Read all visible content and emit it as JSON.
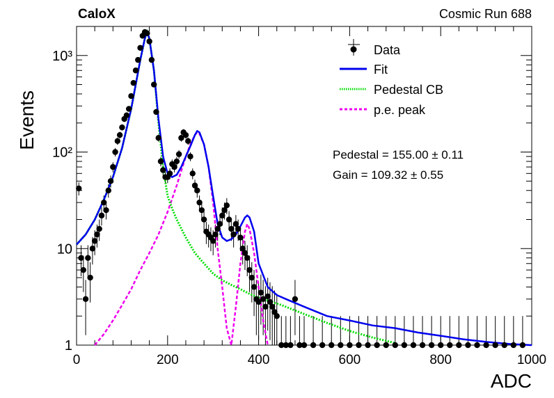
{
  "header": {
    "experiment": "CaloX",
    "run": "Cosmic Run 688"
  },
  "legend": {
    "items": [
      {
        "key": "data",
        "label": "Data"
      },
      {
        "key": "fit",
        "label": "Fit"
      },
      {
        "key": "pedestal",
        "label": "Pedestal CB"
      },
      {
        "key": "pe",
        "label": "p.e. peak"
      }
    ]
  },
  "fit_results": {
    "pedestal": "Pedestal = 155.00 ± 0.11",
    "gain": "Gain = 109.32 ± 0.55"
  },
  "colors": {
    "data": "#000000",
    "fit": "#0000ee",
    "pedestal": "#00dd00",
    "pe": "#ee00ee"
  },
  "chart_data": {
    "type": "scatter",
    "xlabel": "ADC",
    "ylabel": "Events",
    "xlim": [
      0,
      1000
    ],
    "ylim": [
      1,
      2000
    ],
    "yscale": "log",
    "xticks": [
      0,
      200,
      400,
      600,
      800,
      1000
    ],
    "yticks": [
      {
        "value": 1,
        "label": "1"
      },
      {
        "value": 10,
        "label": "10"
      },
      {
        "value": 100,
        "label": "10²"
      },
      {
        "value": 1000,
        "label": "10³"
      }
    ],
    "series": [
      {
        "name": "Data",
        "kind": "points",
        "x": [
          5,
          10,
          15,
          20,
          25,
          30,
          35,
          40,
          45,
          50,
          55,
          60,
          65,
          70,
          75,
          80,
          85,
          90,
          95,
          100,
          105,
          110,
          115,
          120,
          125,
          130,
          135,
          140,
          145,
          150,
          155,
          160,
          165,
          170,
          175,
          180,
          185,
          190,
          195,
          200,
          205,
          210,
          215,
          220,
          225,
          230,
          235,
          240,
          245,
          250,
          255,
          260,
          265,
          270,
          275,
          280,
          285,
          290,
          295,
          300,
          305,
          310,
          315,
          320,
          325,
          330,
          335,
          340,
          345,
          350,
          355,
          360,
          365,
          370,
          375,
          380,
          385,
          390,
          395,
          400,
          405,
          410,
          415,
          420,
          425,
          430,
          435,
          440,
          450,
          460,
          470,
          480,
          490,
          500,
          520,
          540,
          560,
          580,
          600,
          620,
          640,
          660,
          680,
          700,
          720,
          740,
          760,
          780,
          800,
          820,
          840,
          860,
          880,
          900,
          920,
          940,
          960,
          980
        ],
        "y": [
          42,
          8,
          6,
          3,
          8,
          5,
          10,
          12,
          14,
          16,
          22,
          30,
          25,
          40,
          50,
          70,
          100,
          130,
          150,
          180,
          220,
          240,
          280,
          380,
          520,
          700,
          900,
          1200,
          1600,
          1750,
          1700,
          1400,
          900,
          500,
          260,
          140,
          80,
          65,
          55,
          55,
          60,
          75,
          70,
          80,
          95,
          140,
          160,
          150,
          130,
          90,
          60,
          45,
          40,
          30,
          25,
          20,
          15,
          14,
          13,
          12,
          14,
          16,
          18,
          22,
          25,
          28,
          20,
          16,
          14,
          18,
          16,
          13,
          10,
          9,
          8,
          6,
          5,
          4,
          3,
          2.8,
          3.5,
          3,
          2.5,
          3.2,
          2.8,
          2.5,
          2.2,
          2,
          1,
          1,
          1,
          3,
          1,
          1,
          1,
          1,
          1,
          1,
          1,
          1,
          1,
          1,
          1,
          1,
          1,
          1,
          1,
          1,
          1,
          1,
          1,
          1,
          1,
          1,
          1,
          1,
          1,
          1
        ]
      },
      {
        "name": "Fit",
        "kind": "line",
        "x": [
          0,
          20,
          40,
          60,
          80,
          100,
          120,
          140,
          150,
          155,
          160,
          170,
          180,
          190,
          200,
          210,
          220,
          230,
          240,
          250,
          260,
          265,
          270,
          280,
          290,
          300,
          310,
          320,
          330,
          340,
          350,
          360,
          370,
          375,
          380,
          390,
          400,
          420,
          440,
          460,
          500,
          550,
          600,
          650,
          700,
          750,
          800,
          850,
          900,
          950,
          1000
        ],
        "y": [
          11,
          14,
          20,
          32,
          55,
          110,
          280,
          900,
          1500,
          1750,
          1500,
          700,
          220,
          90,
          60,
          55,
          58,
          70,
          90,
          115,
          150,
          165,
          160,
          120,
          70,
          35,
          18,
          13,
          12,
          12.5,
          14,
          17,
          21,
          22,
          21,
          15,
          7,
          4,
          3.3,
          3,
          2.5,
          2,
          1.8,
          1.6,
          1.5,
          1.35,
          1.25,
          1.15,
          1.08,
          1.03,
          1
        ]
      },
      {
        "name": "Pedestal CB",
        "kind": "line",
        "x": [
          0,
          20,
          40,
          60,
          80,
          100,
          120,
          140,
          150,
          155,
          160,
          170,
          180,
          190,
          200,
          210,
          220,
          240,
          260,
          280,
          300,
          320,
          340,
          360,
          380,
          400,
          450,
          500,
          550,
          600,
          650,
          700
        ],
        "y": [
          11,
          14,
          20,
          32,
          55,
          110,
          280,
          900,
          1500,
          1750,
          1500,
          700,
          200,
          70,
          35,
          26,
          20,
          13,
          9,
          7,
          5.5,
          4.7,
          4.2,
          3.8,
          3.4,
          3.1,
          2.6,
          2.1,
          1.7,
          1.4,
          1.2,
          1.05
        ]
      },
      {
        "name": "p.e. peak",
        "kind": "line",
        "x": [
          40,
          60,
          80,
          100,
          120,
          140,
          160,
          180,
          200,
          220,
          240,
          250,
          260,
          265,
          270,
          280,
          290,
          300,
          310,
          320,
          330,
          340,
          350,
          360,
          370,
          375,
          380,
          390,
          400,
          410,
          420
        ],
        "y": [
          1,
          1.3,
          1.8,
          2.6,
          3.8,
          6,
          9,
          14,
          24,
          45,
          90,
          120,
          150,
          160,
          155,
          120,
          70,
          30,
          10,
          4,
          1.5,
          1,
          2.5,
          7,
          15,
          18,
          16,
          9,
          4,
          1.8,
          1
        ]
      }
    ]
  }
}
